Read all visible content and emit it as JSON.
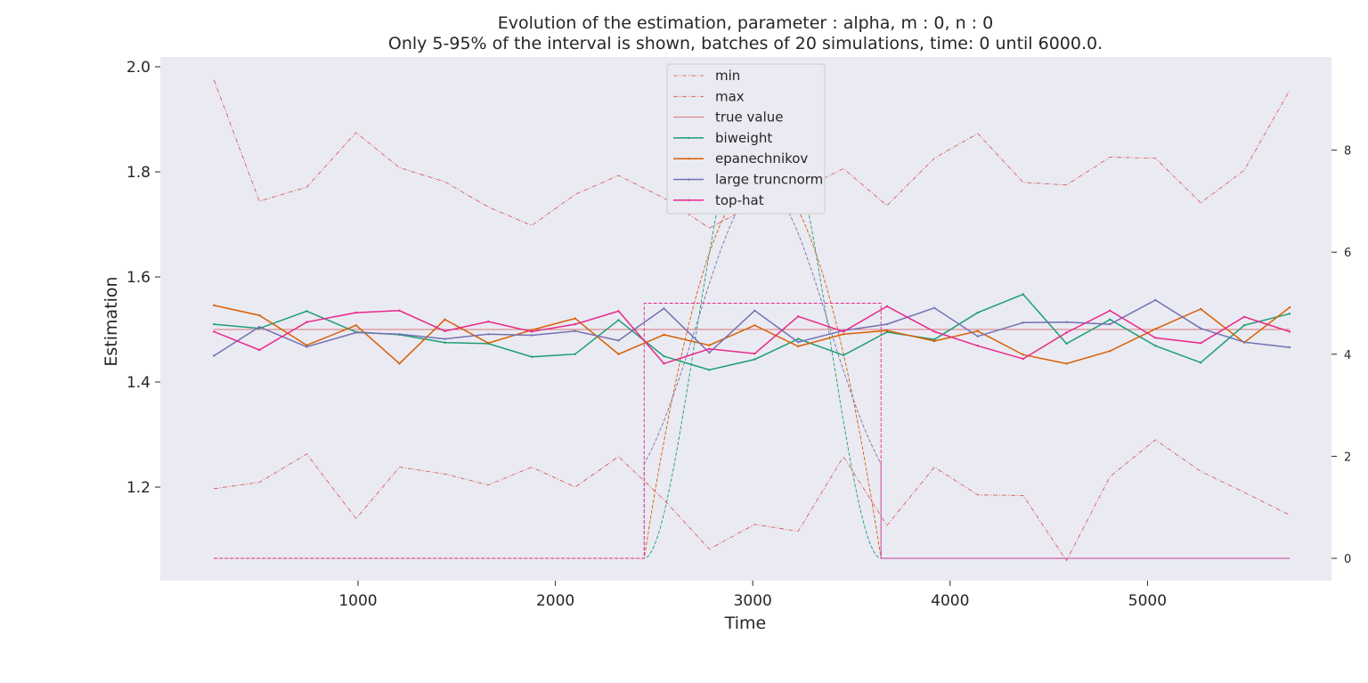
{
  "chart_data": {
    "type": "line",
    "title": "Evolution of the estimation, parameter : alpha, m : 0, n : 0",
    "subtitle": "Only 5-95% of the interval is shown, batches of 20 simulations, time: 0 until 6000.0.",
    "xlabel": "Time",
    "ylabel": "Estimation",
    "xlim": [
      0,
      6000
    ],
    "ylim": [
      1.03,
      2.02
    ],
    "y2lim": [
      -0.25,
      9.6
    ],
    "x_ticks": [
      1000,
      2000,
      3000,
      4000,
      5000
    ],
    "y_ticks": [
      1.2,
      1.4,
      1.6,
      1.8,
      2.0
    ],
    "y2_ticks": [
      0,
      2,
      4,
      6,
      8
    ],
    "grid": false,
    "legend_position": "top-center",
    "x": [
      270,
      500,
      740,
      990,
      1210,
      1440,
      1660,
      1880,
      2100,
      2320,
      2550,
      2780,
      3010,
      3230,
      3460,
      3680,
      3920,
      4140,
      4370,
      4590,
      4810,
      5040,
      5270,
      5490,
      5720
    ],
    "series": [
      {
        "name": "min",
        "style": "dashdot",
        "color": "#d64f4f",
        "axis": "left",
        "values": [
          1.197,
          1.209,
          1.263,
          1.14,
          1.238,
          1.225,
          1.204,
          1.238,
          1.2,
          1.258,
          1.176,
          1.082,
          1.129,
          1.116,
          1.258,
          1.127,
          1.238,
          1.185,
          1.184,
          1.06,
          1.22,
          1.29,
          1.23,
          1.19,
          1.147
        ]
      },
      {
        "name": "max",
        "style": "dashdot",
        "color": "#d64f4f",
        "axis": "left",
        "values": [
          1.975,
          1.744,
          1.771,
          1.875,
          1.808,
          1.781,
          1.733,
          1.698,
          1.757,
          1.793,
          1.75,
          1.693,
          1.738,
          1.765,
          1.806,
          1.736,
          1.826,
          1.873,
          1.78,
          1.775,
          1.828,
          1.826,
          1.741,
          1.803,
          1.955
        ]
      },
      {
        "name": "true value",
        "style": "solid-thin",
        "color": "#d64f4f",
        "axis": "left",
        "values": [
          1.5,
          1.5,
          1.5,
          1.5,
          1.5,
          1.5,
          1.5,
          1.5,
          1.5,
          1.5,
          1.5,
          1.5,
          1.5,
          1.5,
          1.5,
          1.5,
          1.5,
          1.5,
          1.5,
          1.5,
          1.5,
          1.5,
          1.5,
          1.5,
          1.5
        ]
      },
      {
        "name": "biweight",
        "style": "solid",
        "color": "#1b9e77",
        "axis": "left",
        "values": [
          1.51,
          1.502,
          1.535,
          1.495,
          1.49,
          1.475,
          1.473,
          1.448,
          1.453,
          1.518,
          1.449,
          1.423,
          1.443,
          1.482,
          1.451,
          1.495,
          1.481,
          1.532,
          1.567,
          1.473,
          1.519,
          1.469,
          1.437,
          1.508,
          1.53
        ]
      },
      {
        "name": "epanechnikov",
        "style": "solid",
        "color": "#d95f02",
        "axis": "left",
        "values": [
          1.546,
          1.527,
          1.47,
          1.508,
          1.435,
          1.519,
          1.474,
          1.499,
          1.521,
          1.453,
          1.49,
          1.47,
          1.508,
          1.468,
          1.491,
          1.498,
          1.478,
          1.497,
          1.452,
          1.435,
          1.459,
          1.501,
          1.539,
          1.475,
          1.542
        ]
      },
      {
        "name": "large truncnorm",
        "style": "solid",
        "color": "#7570b3",
        "axis": "left",
        "values": [
          1.45,
          1.505,
          1.467,
          1.494,
          1.491,
          1.482,
          1.491,
          1.489,
          1.497,
          1.479,
          1.54,
          1.456,
          1.536,
          1.476,
          1.498,
          1.51,
          1.541,
          1.487,
          1.513,
          1.514,
          1.51,
          1.556,
          1.502,
          1.476,
          1.466
        ]
      },
      {
        "name": "top-hat",
        "style": "solid",
        "color": "#e7298a",
        "axis": "left",
        "values": [
          1.496,
          1.461,
          1.514,
          1.532,
          1.536,
          1.497,
          1.515,
          1.496,
          1.51,
          1.535,
          1.435,
          1.463,
          1.454,
          1.525,
          1.496,
          1.544,
          1.496,
          1.469,
          1.444,
          1.494,
          1.536,
          1.484,
          1.474,
          1.524,
          1.496
        ]
      }
    ],
    "kernels": [
      {
        "name": "biweight kernel",
        "color": "#1b9e77",
        "axis": "right",
        "shape": "biweight",
        "support": [
          2450,
          3650
        ],
        "peak": 9.4
      },
      {
        "name": "epanechnikov kernel",
        "color": "#d95f02",
        "axis": "right",
        "shape": "epanechnikov",
        "support": [
          2450,
          3650
        ],
        "peak": 7.5
      },
      {
        "name": "truncnorm kernel",
        "color": "#7570b3",
        "axis": "right",
        "shape": "truncnorm",
        "support": [
          2450,
          3650
        ],
        "peak": 7.3,
        "edge": 1.85
      },
      {
        "name": "top-hat kernel",
        "color": "#e7298a",
        "axis": "right",
        "shape": "tophat",
        "support": [
          2450,
          3650
        ],
        "peak": 5.0
      }
    ]
  }
}
